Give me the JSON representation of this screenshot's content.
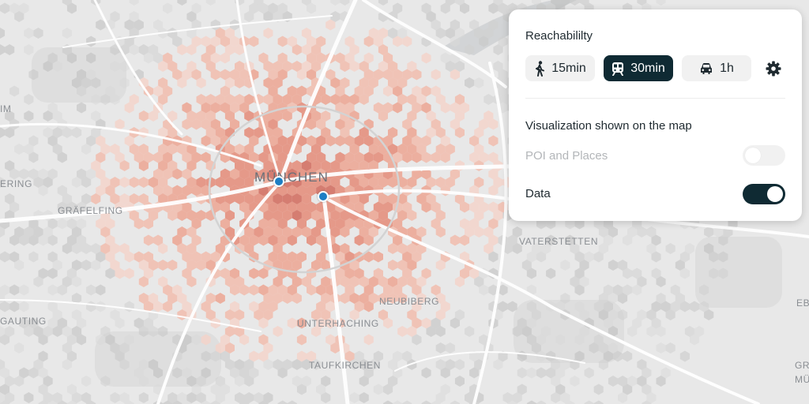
{
  "map": {
    "places": [
      {
        "id": "muenchen",
        "label": "MÜNCHEN"
      },
      {
        "id": "graefelfing",
        "label": "GRÄFELFING"
      },
      {
        "id": "vaterstetten",
        "label": "VATERSTETTEN"
      },
      {
        "id": "neubiberg",
        "label": "NEUBIBERG"
      },
      {
        "id": "unterhaching",
        "label": "UNTERHACHING"
      },
      {
        "id": "taufkirchen",
        "label": "TAUFKIRCHEN"
      },
      {
        "id": "gauting",
        "label": "GAUTING"
      },
      {
        "id": "ering",
        "label": "ERING"
      },
      {
        "id": "im",
        "label": "IM"
      },
      {
        "id": "eb",
        "label": "EB"
      },
      {
        "id": "mu",
        "label": "MÜ"
      },
      {
        "id": "gr",
        "label": "GR"
      }
    ],
    "heat_colors": [
      "#f6d2c7",
      "#f3b7a6",
      "#ee9c87",
      "#e47f6a",
      "#cf5a49"
    ],
    "marker_color": "#1d7ec4"
  },
  "panel": {
    "title": "Reachabililty",
    "modes": [
      {
        "id": "walk",
        "icon": "walking-person-icon",
        "label": "15min",
        "selected": false
      },
      {
        "id": "transit",
        "icon": "train-icon",
        "label": "30min",
        "selected": true
      },
      {
        "id": "car",
        "icon": "car-icon",
        "label": "1h",
        "selected": false
      }
    ],
    "settings_icon": "gear-icon",
    "visualization_title": "Visualization shown on the map",
    "toggles": [
      {
        "id": "poi",
        "label": "POI and Places",
        "on": false
      },
      {
        "id": "data",
        "label": "Data",
        "on": true
      }
    ]
  }
}
